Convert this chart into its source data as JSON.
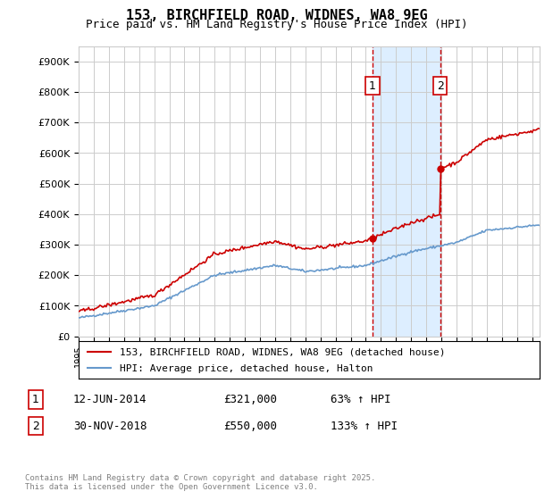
{
  "title": "153, BIRCHFIELD ROAD, WIDNES, WA8 9EG",
  "subtitle": "Price paid vs. HM Land Registry's House Price Index (HPI)",
  "legend_line1": "153, BIRCHFIELD ROAD, WIDNES, WA8 9EG (detached house)",
  "legend_line2": "HPI: Average price, detached house, Halton",
  "sale1_label": "1",
  "sale1_date": "12-JUN-2014",
  "sale1_price": "£321,000",
  "sale1_hpi": "63% ↑ HPI",
  "sale2_label": "2",
  "sale2_date": "30-NOV-2018",
  "sale2_price": "£550,000",
  "sale2_hpi": "133% ↑ HPI",
  "footer": "Contains HM Land Registry data © Crown copyright and database right 2025.\nThis data is licensed under the Open Government Licence v3.0.",
  "red_color": "#cc0000",
  "blue_color": "#6699cc",
  "shading_color": "#ddeeff",
  "grid_color": "#cccccc",
  "background_color": "#ffffff",
  "sale1_x": 2014.44,
  "sale2_x": 2018.92,
  "ylim_min": 0,
  "ylim_max": 950000,
  "xlim_min": 1995,
  "xlim_max": 2025.5
}
